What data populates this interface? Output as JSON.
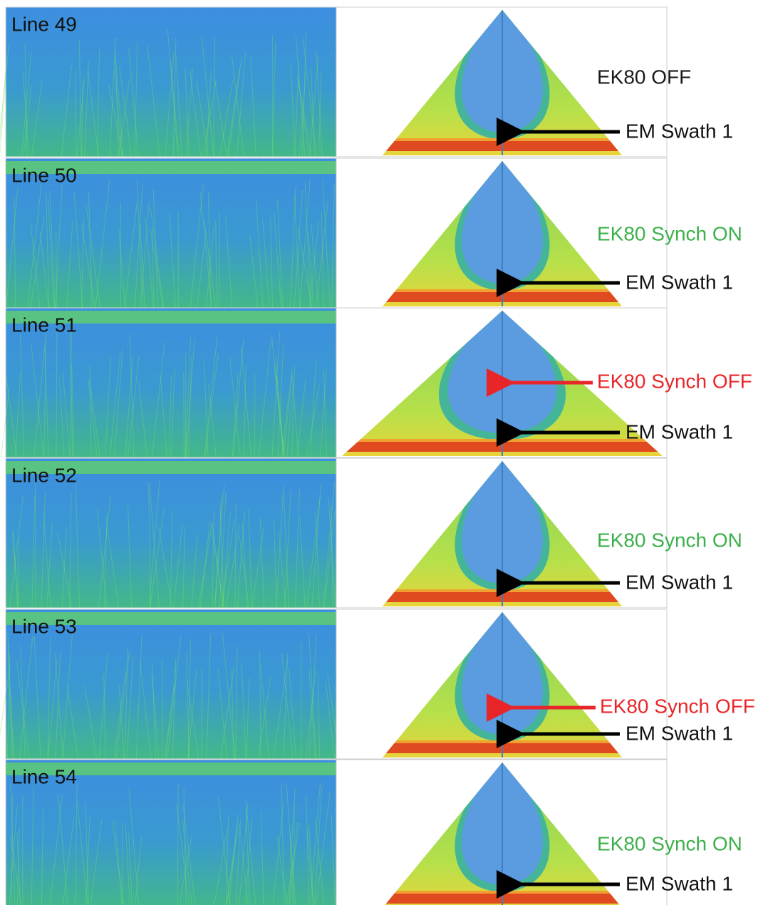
{
  "panels": [
    {
      "line": "Line 49",
      "status": {
        "text": "EK80 OFF",
        "color": "#1a1a1a"
      },
      "swath": "EM Swath 1"
    },
    {
      "line": "Line 50",
      "status": {
        "text": "EK80 Synch ON",
        "color": "#3cb04a"
      },
      "swath": "EM Swath 1"
    },
    {
      "line": "Line 51",
      "status": {
        "text": "EK80 Synch OFF",
        "color": "#e8262a"
      },
      "swath": "EM Swath 1"
    },
    {
      "line": "Line 52",
      "status": {
        "text": "EK80 Synch ON",
        "color": "#3cb04a"
      },
      "swath": "EM Swath 1"
    },
    {
      "line": "Line 53",
      "status": {
        "text": "EK80 Synch OFF",
        "color": "#e8262a"
      },
      "swath": "EM Swath 1"
    },
    {
      "line": "Line 54",
      "status": {
        "text": "EK80 Synch ON",
        "color": "#3cb04a"
      },
      "swath": "EM Swath 1"
    }
  ]
}
